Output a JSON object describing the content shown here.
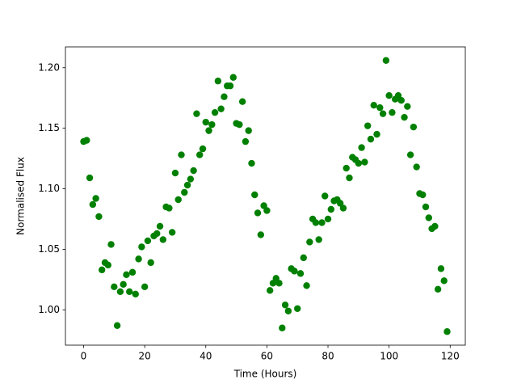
{
  "chart_data": {
    "type": "scatter",
    "xlabel": "Time (Hours)",
    "ylabel": "Normalised Flux",
    "color": "#008000",
    "grid": false,
    "xlim": [
      -5.95,
      124.95
    ],
    "xticks": [
      0,
      20,
      40,
      60,
      80,
      100,
      120
    ],
    "ylim": [
      0.9708,
      1.2172
    ],
    "yticks": [
      {
        "value": 1.0,
        "label": "1.00"
      },
      {
        "value": 1.05,
        "label": "1.05"
      },
      {
        "value": 1.1,
        "label": "1.10"
      },
      {
        "value": 1.15,
        "label": "1.15"
      },
      {
        "value": 1.2,
        "label": "1.20"
      }
    ],
    "x": [
      0,
      1,
      2,
      3,
      4,
      5,
      6,
      7,
      8,
      9,
      10,
      11,
      12,
      13,
      14,
      15,
      16,
      17,
      18,
      19,
      20,
      21,
      22,
      23,
      24,
      25,
      26,
      27,
      28,
      29,
      30,
      31,
      32,
      33,
      34,
      35,
      36,
      37,
      38,
      39,
      40,
      41,
      42,
      43,
      44,
      45,
      46,
      47,
      48,
      49,
      50,
      51,
      52,
      53,
      54,
      55,
      56,
      57,
      58,
      59,
      60,
      61,
      62,
      63,
      64,
      65,
      66,
      67,
      68,
      69,
      70,
      71,
      72,
      73,
      74,
      75,
      76,
      77,
      78,
      79,
      80,
      81,
      82,
      83,
      84,
      85,
      86,
      87,
      88,
      89,
      90,
      91,
      92,
      93,
      94,
      95,
      96,
      97,
      98,
      99,
      100,
      101,
      102,
      103,
      104,
      105,
      106,
      107,
      108,
      109,
      110,
      111,
      112,
      113,
      114,
      115,
      116,
      117,
      118,
      119
    ],
    "values": [
      1.139,
      1.14,
      1.109,
      1.087,
      1.092,
      1.077,
      1.033,
      1.039,
      1.037,
      1.054,
      1.019,
      0.987,
      1.015,
      1.021,
      1.029,
      1.015,
      1.031,
      1.013,
      1.042,
      1.052,
      1.019,
      1.057,
      1.039,
      1.061,
      1.063,
      1.069,
      1.058,
      1.085,
      1.084,
      1.064,
      1.113,
      1.091,
      1.128,
      1.097,
      1.103,
      1.108,
      1.115,
      1.162,
      1.128,
      1.133,
      1.155,
      1.148,
      1.153,
      1.163,
      1.189,
      1.166,
      1.176,
      1.185,
      1.185,
      1.192,
      1.154,
      1.153,
      1.172,
      1.139,
      1.148,
      1.121,
      1.095,
      1.08,
      1.062,
      1.086,
      1.082,
      1.016,
      1.022,
      1.026,
      1.022,
      0.985,
      1.004,
      0.999,
      1.034,
      1.032,
      1.001,
      1.03,
      1.043,
      1.02,
      1.056,
      1.075,
      1.072,
      1.058,
      1.072,
      1.094,
      1.075,
      1.083,
      1.09,
      1.091,
      1.088,
      1.084,
      1.117,
      1.109,
      1.126,
      1.124,
      1.121,
      1.134,
      1.122,
      1.152,
      1.141,
      1.169,
      1.145,
      1.167,
      1.162,
      1.206,
      1.177,
      1.163,
      1.174,
      1.177,
      1.173,
      1.159,
      1.168,
      1.128,
      1.151,
      1.118,
      1.096,
      1.095,
      1.085,
      1.076,
      1.067,
      1.069,
      1.017,
      1.034,
      1.024,
      0.982
    ]
  }
}
